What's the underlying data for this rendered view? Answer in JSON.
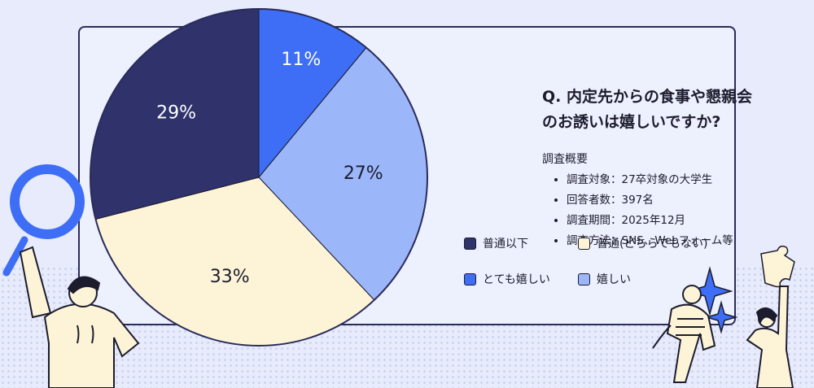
{
  "chart_data": {
    "type": "pie",
    "title": "Q. 内定先からの食事や懇親会のお誘いは嬉しいですか?",
    "slices": [
      {
        "label": "とても嬉しい",
        "value": 11,
        "value_label": "11%",
        "color": "#3d6ef5"
      },
      {
        "label": "嬉しい",
        "value": 27,
        "value_label": "27%",
        "color": "#9cb6fa"
      },
      {
        "label": "普通(どちらでもない)",
        "value": 33,
        "value_label": "33%",
        "color": "#fdf4d8"
      },
      {
        "label": "普通以下",
        "value": 29,
        "value_label": "29%",
        "color": "#2f326b"
      }
    ]
  },
  "title_lines": [
    "Q. 内定先からの食事や懇親会",
    "のお誘いは嬉しいですか?"
  ],
  "overview": {
    "heading": "調査概要",
    "items": [
      "調査対象：27卒対象の大学生",
      "回答者数：397名",
      "調査期間：2025年12月",
      "調査方法：SNS、Webフォーム等"
    ]
  },
  "legend": [
    {
      "label": "普通以下",
      "color": "#2f326b"
    },
    {
      "label": "普通(どちらでもない)",
      "color": "#fdf4d8"
    },
    {
      "label": "とても嬉しい",
      "color": "#3d6ef5"
    },
    {
      "label": "嬉しい",
      "color": "#9cb6fa"
    }
  ]
}
